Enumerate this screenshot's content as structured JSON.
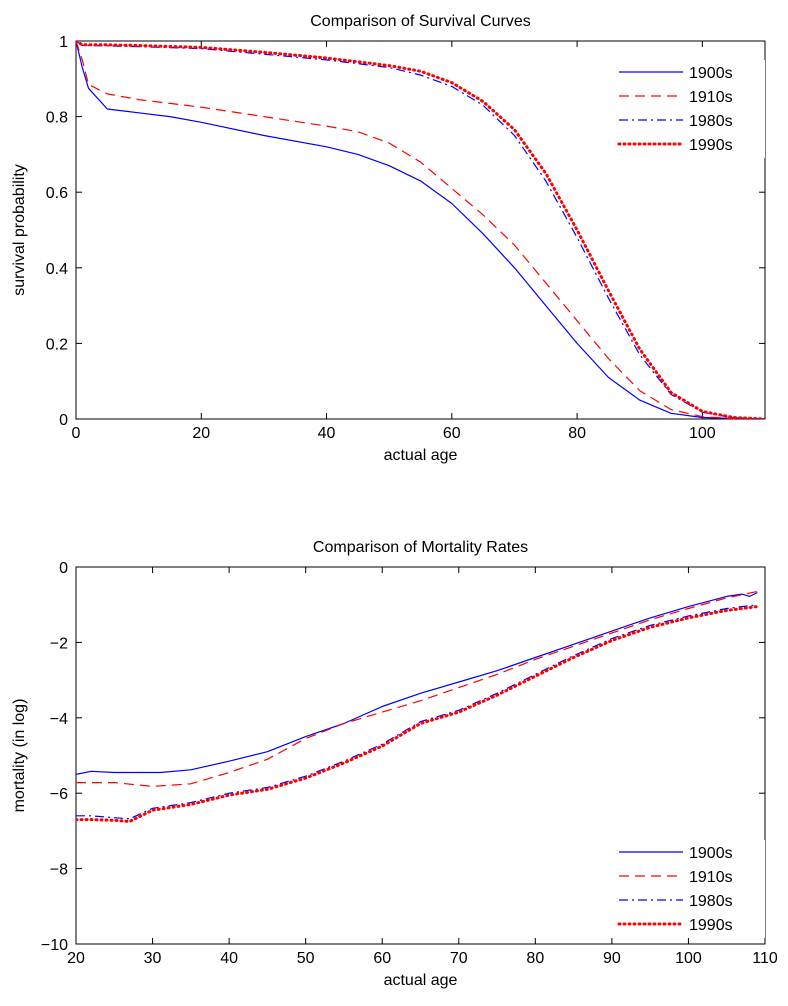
{
  "chart_data": [
    {
      "type": "line",
      "title": "Comparison of Survival Curves",
      "xlabel": "actual age",
      "ylabel": "survival probability",
      "xlim": [
        0,
        110
      ],
      "ylim": [
        0,
        1
      ],
      "xticks": [
        0,
        20,
        40,
        60,
        80,
        100
      ],
      "yticks": [
        0,
        0.2,
        0.4,
        0.6,
        0.8,
        1
      ],
      "ytick_labels": [
        "0",
        "0.2",
        "0.4",
        "0.6",
        "0.8",
        "1"
      ],
      "legend_position": "top-right",
      "series": [
        {
          "name": "1900s",
          "color": "#0000ff",
          "style": "solid",
          "x": [
            0,
            1,
            2,
            5,
            10,
            15,
            20,
            30,
            40,
            45,
            50,
            55,
            60,
            65,
            70,
            75,
            80,
            85,
            90,
            95,
            100,
            105,
            110
          ],
          "y": [
            1.0,
            0.93,
            0.875,
            0.82,
            0.81,
            0.8,
            0.785,
            0.75,
            0.72,
            0.7,
            0.67,
            0.63,
            0.57,
            0.49,
            0.4,
            0.3,
            0.2,
            0.11,
            0.05,
            0.015,
            0.004,
            0.001,
            0
          ]
        },
        {
          "name": "1910s",
          "color": "#ff0000",
          "style": "dashed",
          "x": [
            0,
            1,
            2,
            5,
            10,
            15,
            20,
            30,
            40,
            45,
            50,
            55,
            60,
            65,
            70,
            75,
            80,
            85,
            90,
            95,
            100,
            105,
            110
          ],
          "y": [
            1.0,
            0.95,
            0.885,
            0.86,
            0.845,
            0.835,
            0.825,
            0.8,
            0.775,
            0.76,
            0.73,
            0.68,
            0.61,
            0.54,
            0.46,
            0.36,
            0.26,
            0.16,
            0.075,
            0.025,
            0.006,
            0.001,
            0
          ]
        },
        {
          "name": "1980s",
          "color": "#0000ff",
          "style": "dashdot",
          "x": [
            0,
            1,
            5,
            10,
            20,
            30,
            40,
            50,
            55,
            60,
            65,
            70,
            75,
            80,
            85,
            90,
            95,
            100,
            105,
            110
          ],
          "y": [
            1.0,
            0.988,
            0.987,
            0.985,
            0.98,
            0.965,
            0.95,
            0.93,
            0.91,
            0.88,
            0.83,
            0.75,
            0.63,
            0.48,
            0.32,
            0.17,
            0.065,
            0.018,
            0.003,
            0
          ]
        },
        {
          "name": "1990s",
          "color": "#ff0000",
          "style": "dotted",
          "x": [
            0,
            1,
            5,
            10,
            20,
            30,
            40,
            50,
            55,
            60,
            65,
            70,
            75,
            80,
            85,
            90,
            95,
            100,
            105,
            110
          ],
          "y": [
            1.0,
            0.99,
            0.99,
            0.988,
            0.983,
            0.97,
            0.955,
            0.935,
            0.92,
            0.89,
            0.84,
            0.765,
            0.65,
            0.5,
            0.34,
            0.185,
            0.07,
            0.02,
            0.004,
            0
          ]
        }
      ]
    },
    {
      "type": "line",
      "title": "Comparison of Mortality Rates",
      "xlabel": "actual age",
      "ylabel": "mortality (in log)",
      "xlim": [
        20,
        110
      ],
      "ylim": [
        -10,
        0
      ],
      "xticks": [
        20,
        30,
        40,
        50,
        60,
        70,
        80,
        90,
        100,
        110
      ],
      "yticks": [
        -10,
        -8,
        -6,
        -4,
        -2,
        0
      ],
      "ytick_labels": [
        "−10",
        "−8",
        "−6",
        "−4",
        "−2",
        "0"
      ],
      "legend_position": "bottom-right",
      "series": [
        {
          "name": "1900s",
          "color": "#0000ff",
          "style": "solid",
          "x": [
            20,
            22,
            25,
            28,
            31,
            35,
            40,
            45,
            50,
            55,
            60,
            65,
            70,
            75,
            80,
            85,
            90,
            95,
            100,
            105,
            107,
            108,
            109
          ],
          "y": [
            -5.5,
            -5.42,
            -5.45,
            -5.45,
            -5.45,
            -5.38,
            -5.15,
            -4.9,
            -4.5,
            -4.15,
            -3.7,
            -3.35,
            -3.05,
            -2.75,
            -2.4,
            -2.05,
            -1.7,
            -1.35,
            -1.05,
            -0.78,
            -0.72,
            -0.78,
            -0.68
          ]
        },
        {
          "name": "1910s",
          "color": "#ff0000",
          "style": "dashed",
          "x": [
            20,
            25,
            30,
            35,
            40,
            45,
            50,
            55,
            60,
            65,
            70,
            75,
            80,
            85,
            90,
            95,
            100,
            105,
            109
          ],
          "y": [
            -5.72,
            -5.72,
            -5.82,
            -5.75,
            -5.45,
            -5.1,
            -4.55,
            -4.15,
            -3.85,
            -3.55,
            -3.2,
            -2.85,
            -2.45,
            -2.1,
            -1.75,
            -1.4,
            -1.1,
            -0.82,
            -0.65
          ]
        },
        {
          "name": "1980s",
          "color": "#0000ff",
          "style": "dashdot",
          "x": [
            20,
            22,
            25,
            27,
            30,
            35,
            40,
            45,
            50,
            55,
            60,
            65,
            70,
            75,
            80,
            85,
            90,
            95,
            100,
            105,
            109
          ],
          "y": [
            -6.6,
            -6.6,
            -6.65,
            -6.68,
            -6.4,
            -6.25,
            -6.0,
            -5.85,
            -5.55,
            -5.15,
            -4.7,
            -4.1,
            -3.8,
            -3.35,
            -2.85,
            -2.35,
            -1.9,
            -1.55,
            -1.3,
            -1.1,
            -1.0
          ]
        },
        {
          "name": "1990s",
          "color": "#ff0000",
          "style": "dotted",
          "x": [
            20,
            22,
            25,
            27,
            30,
            35,
            40,
            45,
            50,
            55,
            60,
            65,
            70,
            75,
            80,
            85,
            90,
            95,
            100,
            105,
            109
          ],
          "y": [
            -6.7,
            -6.7,
            -6.72,
            -6.75,
            -6.45,
            -6.3,
            -6.05,
            -5.9,
            -5.6,
            -5.2,
            -4.75,
            -4.15,
            -3.85,
            -3.4,
            -2.9,
            -2.4,
            -1.95,
            -1.6,
            -1.35,
            -1.15,
            -1.05
          ]
        }
      ]
    }
  ]
}
